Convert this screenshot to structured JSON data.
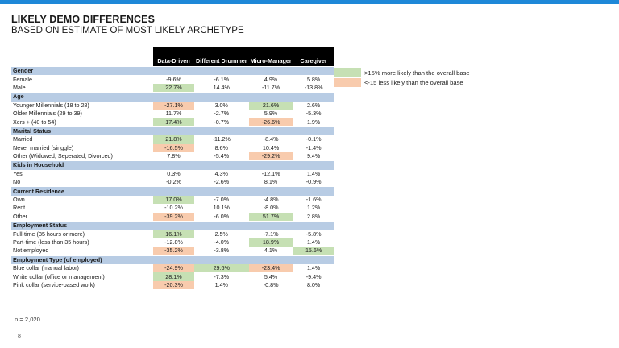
{
  "title": "LIKELY DEMO DIFFERENCES",
  "subtitle": "BASED ON ESTIMATE OF MOST LIKELY ARCHETYPE",
  "columns": [
    "Data-Driven",
    "Different Drummer",
    "Micro-Manager",
    "Caregiver"
  ],
  "colors": {
    "positive": "#c6e0b4",
    "negative": "#f8cbad",
    "section": "#b8cce4",
    "accent": "#1e88d8"
  },
  "legend": {
    "positive": ">15% more likely than the overall base",
    "negative": "<-15 less likely than the overall base"
  },
  "sections": [
    {
      "title": "Gender",
      "rows": [
        {
          "label": "Female",
          "values": [
            "-9.6%",
            "-6.1%",
            "4.9%",
            "5.8%"
          ],
          "hl": [
            "",
            "",
            "",
            ""
          ]
        },
        {
          "label": "Male",
          "values": [
            "22.7%",
            "14.4%",
            "-11.7%",
            "-13.8%"
          ],
          "hl": [
            "pos",
            "",
            "",
            ""
          ]
        }
      ]
    },
    {
      "title": "Age",
      "rows": [
        {
          "label": "Younger Millennials (18 to 28)",
          "values": [
            "-27.1%",
            "3.0%",
            "21.6%",
            "2.6%"
          ],
          "hl": [
            "neg",
            "",
            "pos",
            ""
          ]
        },
        {
          "label": "Older Millennials (29 to 39)",
          "values": [
            "11.7%",
            "-2.7%",
            "5.9%",
            "-5.3%"
          ],
          "hl": [
            "",
            "",
            "",
            ""
          ]
        },
        {
          "label": "Xers + (40 to 54)",
          "values": [
            "17.4%",
            "-0.7%",
            "-26.6%",
            "1.9%"
          ],
          "hl": [
            "pos",
            "",
            "neg",
            ""
          ]
        }
      ]
    },
    {
      "title": "Marital Status",
      "rows": [
        {
          "label": "Married",
          "values": [
            "21.8%",
            "-11.2%",
            "-8.4%",
            "-0.1%"
          ],
          "hl": [
            "pos",
            "",
            "",
            ""
          ]
        },
        {
          "label": "Never married (singgle)",
          "values": [
            "-16.5%",
            "8.6%",
            "10.4%",
            "-1.4%"
          ],
          "hl": [
            "neg",
            "",
            "",
            ""
          ]
        },
        {
          "label": "Other (Widowed, Seperated, Divorced)",
          "values": [
            "7.8%",
            "-5.4%",
            "-29.2%",
            "9.4%"
          ],
          "hl": [
            "",
            "",
            "neg",
            ""
          ]
        }
      ]
    },
    {
      "title": "Kids in Household",
      "rows": [
        {
          "label": "Yes",
          "values": [
            "0.3%",
            "4.3%",
            "-12.1%",
            "1.4%"
          ],
          "hl": [
            "",
            "",
            "",
            ""
          ]
        },
        {
          "label": "No",
          "values": [
            "-0.2%",
            "-2.6%",
            "8.1%",
            "-0.9%"
          ],
          "hl": [
            "",
            "",
            "",
            ""
          ]
        }
      ]
    },
    {
      "title": "Current Residence",
      "rows": [
        {
          "label": "Own",
          "values": [
            "17.0%",
            "-7.0%",
            "-4.8%",
            "-1.6%"
          ],
          "hl": [
            "pos",
            "",
            "",
            ""
          ]
        },
        {
          "label": "Rent",
          "values": [
            "-10.2%",
            "10.1%",
            "-8.0%",
            "1.2%"
          ],
          "hl": [
            "",
            "",
            "",
            ""
          ]
        },
        {
          "label": "Other",
          "values": [
            "-39.2%",
            "-6.0%",
            "51.7%",
            "2.8%"
          ],
          "hl": [
            "neg",
            "",
            "pos",
            ""
          ]
        }
      ]
    },
    {
      "title": "Employment Status",
      "rows": [
        {
          "label": "Full-time (35 hours or more)",
          "values": [
            "16.1%",
            "2.5%",
            "-7.1%",
            "-5.8%"
          ],
          "hl": [
            "pos",
            "",
            "",
            ""
          ]
        },
        {
          "label": "Part-time (less than 35 hours)",
          "values": [
            "-12.8%",
            "-4.0%",
            "18.9%",
            "1.4%"
          ],
          "hl": [
            "",
            "",
            "pos",
            ""
          ]
        },
        {
          "label": "Not employed",
          "values": [
            "-35.2%",
            "-3.8%",
            "4.1%",
            "15.6%"
          ],
          "hl": [
            "neg",
            "",
            "",
            "pos"
          ]
        }
      ]
    },
    {
      "title": "Employment Type (of employed)",
      "rows": [
        {
          "label": "Blue collar (manual labor)",
          "values": [
            "-24.9%",
            "29.6%",
            "-23.4%",
            "1.4%"
          ],
          "hl": [
            "neg",
            "pos",
            "neg",
            ""
          ]
        },
        {
          "label": "White collar (office or management)",
          "values": [
            "28.1%",
            "-7.3%",
            "5.4%",
            "-9.4%"
          ],
          "hl": [
            "pos",
            "",
            "",
            ""
          ]
        },
        {
          "label": "Pink collar (service-based work)",
          "values": [
            "-20.3%",
            "1.4%",
            "-0.8%",
            "8.0%"
          ],
          "hl": [
            "neg",
            "",
            "",
            ""
          ]
        }
      ]
    }
  ],
  "note": "n = 2,020",
  "page_number": "8"
}
